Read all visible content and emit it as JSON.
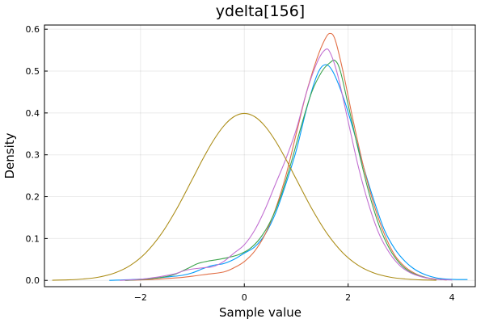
{
  "chart_data": {
    "type": "line",
    "title": "ydelta[156]",
    "xlabel": "Sample value",
    "ylabel": "Density",
    "xlim": [
      -3.85,
      4.45
    ],
    "ylim": [
      -0.015,
      0.61
    ],
    "xticks": [
      -2,
      0,
      2,
      4
    ],
    "xtick_labels": [
      "−2",
      "0",
      "2",
      "4"
    ],
    "yticks": [
      0.0,
      0.1,
      0.2,
      0.3,
      0.4,
      0.5,
      0.6
    ],
    "ytick_labels": [
      "0.0",
      "0.1",
      "0.2",
      "0.3",
      "0.4",
      "0.5",
      "0.6"
    ],
    "grid": true,
    "legend": "none",
    "series": [
      {
        "color": "#009af9",
        "x": [
          -2.6,
          -2.0,
          -1.5,
          -1.2,
          -1.0,
          -0.8,
          -0.6,
          -0.4,
          -0.2,
          0.0,
          0.2,
          0.4,
          0.6,
          0.8,
          1.0,
          1.2,
          1.4,
          1.55,
          1.7,
          1.9,
          2.1,
          2.3,
          2.5,
          2.7,
          2.9,
          3.1,
          3.3,
          3.5,
          3.7,
          3.9,
          4.1,
          4.3
        ],
        "y": [
          0.0,
          0.003,
          0.008,
          0.012,
          0.018,
          0.028,
          0.036,
          0.04,
          0.05,
          0.065,
          0.08,
          0.11,
          0.16,
          0.23,
          0.31,
          0.41,
          0.49,
          0.515,
          0.5,
          0.44,
          0.36,
          0.27,
          0.19,
          0.12,
          0.075,
          0.045,
          0.025,
          0.013,
          0.006,
          0.003,
          0.002,
          0.002
        ]
      },
      {
        "color": "#e26f46",
        "x": [
          -2.3,
          -1.8,
          -1.3,
          -1.0,
          -0.7,
          -0.4,
          -0.2,
          0.0,
          0.2,
          0.4,
          0.6,
          0.8,
          1.0,
          1.2,
          1.4,
          1.55,
          1.65,
          1.75,
          1.9,
          2.1,
          2.3,
          2.5,
          2.7,
          2.9,
          3.1,
          3.3,
          3.5,
          3.7,
          3.9
        ],
        "y": [
          0.0,
          0.002,
          0.006,
          0.01,
          0.015,
          0.02,
          0.03,
          0.045,
          0.07,
          0.11,
          0.17,
          0.25,
          0.35,
          0.45,
          0.53,
          0.575,
          0.59,
          0.575,
          0.5,
          0.38,
          0.27,
          0.18,
          0.11,
          0.06,
          0.032,
          0.016,
          0.007,
          0.003,
          0.001
        ]
      },
      {
        "color": "#3da44d",
        "x": [
          -2.3,
          -1.8,
          -1.4,
          -1.1,
          -0.9,
          -0.7,
          -0.5,
          -0.3,
          -0.1,
          0.1,
          0.3,
          0.5,
          0.7,
          0.9,
          1.1,
          1.3,
          1.5,
          1.65,
          1.75,
          1.85,
          2.0,
          2.2,
          2.4,
          2.6,
          2.8,
          3.0,
          3.2,
          3.4,
          3.6,
          3.8
        ],
        "y": [
          0.0,
          0.004,
          0.012,
          0.028,
          0.04,
          0.046,
          0.05,
          0.055,
          0.062,
          0.075,
          0.1,
          0.14,
          0.2,
          0.28,
          0.37,
          0.45,
          0.5,
          0.52,
          0.525,
          0.5,
          0.42,
          0.31,
          0.21,
          0.13,
          0.075,
          0.04,
          0.02,
          0.01,
          0.004,
          0.002
        ]
      },
      {
        "color": "#c271d2",
        "x": [
          -2.4,
          -1.9,
          -1.4,
          -1.1,
          -0.8,
          -0.6,
          -0.4,
          -0.2,
          0.0,
          0.2,
          0.4,
          0.6,
          0.8,
          1.0,
          1.2,
          1.4,
          1.55,
          1.65,
          1.8,
          2.0,
          2.2,
          2.4,
          2.6,
          2.8,
          3.0,
          3.2,
          3.4,
          3.6,
          3.8,
          4.0
        ],
        "y": [
          0.0,
          0.004,
          0.014,
          0.025,
          0.03,
          0.033,
          0.045,
          0.065,
          0.085,
          0.12,
          0.17,
          0.23,
          0.29,
          0.36,
          0.45,
          0.52,
          0.55,
          0.545,
          0.49,
          0.38,
          0.27,
          0.18,
          0.11,
          0.065,
          0.035,
          0.018,
          0.009,
          0.004,
          0.002,
          0.001
        ]
      },
      {
        "color": "#ac8d18",
        "x": [
          -3.7,
          -3.4,
          -3.1,
          -2.8,
          -2.5,
          -2.2,
          -1.9,
          -1.6,
          -1.3,
          -1.0,
          -0.8,
          -0.6,
          -0.4,
          -0.2,
          0.0,
          0.2,
          0.4,
          0.6,
          0.8,
          1.0,
          1.3,
          1.6,
          1.9,
          2.2,
          2.5,
          2.8,
          3.1,
          3.4,
          3.7
        ],
        "y": [
          0.0004,
          0.0012,
          0.0033,
          0.0079,
          0.0175,
          0.0355,
          0.0656,
          0.1109,
          0.1714,
          0.242,
          0.2897,
          0.3332,
          0.3683,
          0.391,
          0.3989,
          0.391,
          0.3683,
          0.3332,
          0.2897,
          0.242,
          0.1714,
          0.1109,
          0.0656,
          0.0355,
          0.0175,
          0.0079,
          0.0033,
          0.0012,
          0.0004
        ]
      }
    ]
  }
}
